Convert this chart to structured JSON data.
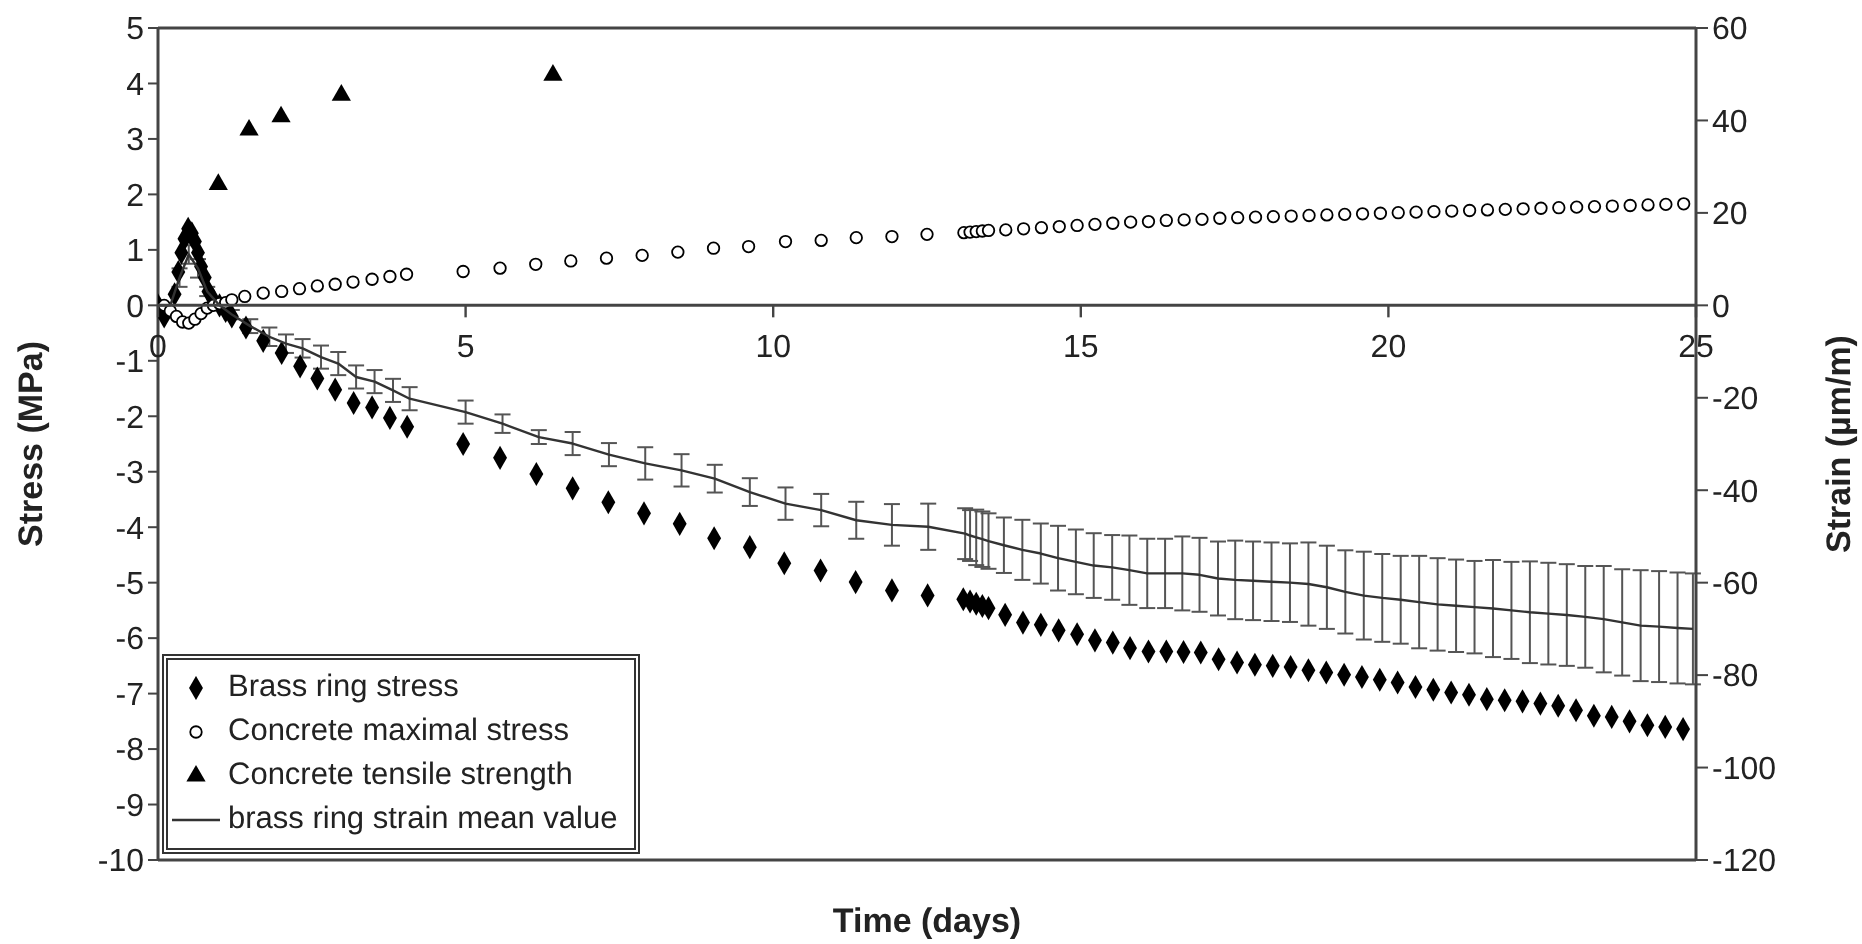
{
  "chart_data": {
    "type": "scatter",
    "xlabel": "Time (days)",
    "ylabel": "Stress (MPa)",
    "y2label": "Strain (µm/m)",
    "xlim": [
      0,
      25
    ],
    "xticks": [
      0,
      5,
      10,
      15,
      20,
      25
    ],
    "ylim": [
      -10,
      5
    ],
    "yticks": [
      -10,
      -9,
      -8,
      -7,
      -6,
      -5,
      -4,
      -3,
      -2,
      -1,
      0,
      1,
      2,
      3,
      4,
      5
    ],
    "y2lim": [
      -120,
      60
    ],
    "y2ticks": [
      -120,
      -100,
      -80,
      -60,
      -40,
      -20,
      0,
      20,
      40,
      60
    ],
    "legend": "bottom left",
    "series": [
      {
        "name": "Brass ring stress",
        "marker": "diamond",
        "color": "#000000",
        "x": [
          0,
          0.1,
          0.27,
          0.33,
          0.38,
          0.43,
          0.49,
          0.55,
          0.6,
          0.65,
          0.7,
          0.76,
          0.82,
          0.9,
          1.0,
          1.1,
          1.2,
          1.43,
          1.71,
          2.01,
          2.31,
          2.59,
          2.88,
          3.18,
          3.48,
          3.77,
          4.05,
          4.96,
          5.56,
          6.15,
          6.74,
          7.32,
          7.9,
          8.48,
          9.04,
          9.62,
          10.18,
          10.77,
          11.34,
          11.93,
          12.51,
          13.09,
          13.2,
          13.3,
          13.4,
          13.5,
          13.77,
          14.06,
          14.35,
          14.64,
          14.94,
          15.23,
          15.52,
          15.8,
          16.1,
          16.39,
          16.67,
          16.95,
          17.24,
          17.54,
          17.83,
          18.12,
          18.41,
          18.7,
          18.99,
          19.28,
          19.57,
          19.86,
          20.15,
          20.44,
          20.73,
          21.02,
          21.31,
          21.6,
          21.89,
          22.18,
          22.47,
          22.76,
          23.05,
          23.34,
          23.63,
          23.92,
          24.21,
          24.5,
          24.79
        ],
        "values": [
          0,
          -0.2,
          0.2,
          0.6,
          0.95,
          1.2,
          1.38,
          1.3,
          1.15,
          0.95,
          0.7,
          0.5,
          0.25,
          0.1,
          0,
          -0.1,
          -0.2,
          -0.4,
          -0.64,
          -0.86,
          -1.1,
          -1.32,
          -1.52,
          -1.76,
          -1.84,
          -2.03,
          -2.19,
          -2.5,
          -2.75,
          -3.04,
          -3.3,
          -3.55,
          -3.75,
          -3.94,
          -4.2,
          -4.36,
          -4.65,
          -4.78,
          -4.99,
          -5.14,
          -5.23,
          -5.3,
          -5.34,
          -5.38,
          -5.42,
          -5.46,
          -5.58,
          -5.72,
          -5.76,
          -5.86,
          -5.93,
          -6.04,
          -6.08,
          -6.18,
          -6.24,
          -6.24,
          -6.25,
          -6.26,
          -6.38,
          -6.44,
          -6.48,
          -6.5,
          -6.52,
          -6.58,
          -6.62,
          -6.66,
          -6.7,
          -6.75,
          -6.8,
          -6.88,
          -6.93,
          -6.98,
          -7.02,
          -7.1,
          -7.12,
          -7.14,
          -7.18,
          -7.22,
          -7.3,
          -7.4,
          -7.42,
          -7.5,
          -7.57,
          -7.6,
          -7.64
        ]
      },
      {
        "name": "Concrete maximal stress",
        "marker": "circle",
        "color": "#000000",
        "x": [
          0.1,
          0.2,
          0.3,
          0.4,
          0.5,
          0.6,
          0.7,
          0.8,
          0.9,
          1.0,
          1.1,
          1.2,
          1.41,
          1.71,
          2.01,
          2.3,
          2.59,
          2.88,
          3.17,
          3.48,
          3.77,
          4.04,
          4.96,
          5.56,
          6.14,
          6.71,
          7.29,
          7.87,
          8.45,
          9.03,
          9.6,
          10.2,
          10.78,
          11.35,
          11.93,
          12.5,
          13.1,
          13.2,
          13.3,
          13.4,
          13.5,
          13.78,
          14.07,
          14.36,
          14.65,
          14.94,
          15.23,
          15.52,
          15.81,
          16.1,
          16.39,
          16.68,
          16.97,
          17.26,
          17.55,
          17.84,
          18.13,
          18.42,
          18.71,
          19.0,
          19.29,
          19.58,
          19.87,
          20.16,
          20.45,
          20.74,
          21.03,
          21.32,
          21.61,
          21.9,
          22.19,
          22.48,
          22.77,
          23.06,
          23.35,
          23.64,
          23.93,
          24.22,
          24.51,
          24.8
        ],
        "values": [
          0,
          -0.1,
          -0.2,
          -0.3,
          -0.32,
          -0.25,
          -0.15,
          -0.05,
          0,
          0.03,
          0.05,
          0.1,
          0.16,
          0.22,
          0.25,
          0.3,
          0.35,
          0.38,
          0.42,
          0.47,
          0.52,
          0.56,
          0.61,
          0.67,
          0.74,
          0.8,
          0.85,
          0.9,
          0.96,
          1.03,
          1.06,
          1.15,
          1.17,
          1.22,
          1.24,
          1.28,
          1.31,
          1.32,
          1.33,
          1.34,
          1.35,
          1.36,
          1.38,
          1.4,
          1.42,
          1.44,
          1.46,
          1.48,
          1.5,
          1.51,
          1.53,
          1.54,
          1.55,
          1.57,
          1.58,
          1.59,
          1.6,
          1.61,
          1.62,
          1.63,
          1.64,
          1.65,
          1.66,
          1.67,
          1.68,
          1.69,
          1.7,
          1.71,
          1.72,
          1.73,
          1.74,
          1.75,
          1.76,
          1.77,
          1.78,
          1.79,
          1.8,
          1.81,
          1.82,
          1.83
        ]
      },
      {
        "name": "Concrete tensile strength",
        "marker": "triangle",
        "color": "#000000",
        "x": [
          0.98,
          1.48,
          2.0,
          2.98,
          6.42
        ],
        "values": [
          2.18,
          3.16,
          3.4,
          3.79,
          4.15
        ]
      },
      {
        "name": "brass ring strain mean value",
        "type": "line",
        "marker": "none",
        "axis": "y2",
        "color": "#333333",
        "x": [
          0,
          0.2,
          0.35,
          0.5,
          0.65,
          0.8,
          1.0,
          1.2,
          1.5,
          1.81,
          2.08,
          2.35,
          2.65,
          2.93,
          3.22,
          3.52,
          3.82,
          4.09,
          5.0,
          5.6,
          6.19,
          6.74,
          7.33,
          7.92,
          8.51,
          9.05,
          9.62,
          10.2,
          10.78,
          11.35,
          11.93,
          12.52,
          13.12,
          13.2,
          13.3,
          13.4,
          13.5,
          13.75,
          14.05,
          14.35,
          14.63,
          14.92,
          15.21,
          15.51,
          15.79,
          16.08,
          16.37,
          16.65,
          16.93,
          17.23,
          17.51,
          17.8,
          18.1,
          18.4,
          18.7,
          19.0,
          19.3,
          19.6,
          19.9,
          20.2,
          20.5,
          20.8,
          21.1,
          21.4,
          21.7,
          22.0,
          22.3,
          22.6,
          22.9,
          23.2,
          23.5,
          23.8,
          24.1,
          24.4,
          24.7,
          24.95
        ],
        "values": [
          0,
          0,
          6,
          11,
          8,
          3,
          0,
          -2,
          -4.5,
          -6.8,
          -8.3,
          -9.3,
          -11.2,
          -12.6,
          -15.5,
          -16.5,
          -18.4,
          -20.2,
          -23.1,
          -25.6,
          -28.5,
          -29.9,
          -32.3,
          -34.2,
          -35.7,
          -37.5,
          -40.4,
          -42.9,
          -44.3,
          -46.5,
          -47.5,
          -47.9,
          -49.4,
          -49.8,
          -50.2,
          -50.6,
          -51,
          -51.9,
          -52.9,
          -53.7,
          -54.7,
          -55.5,
          -56.3,
          -56.7,
          -57.3,
          -58,
          -58,
          -58,
          -58.3,
          -59.1,
          -59.4,
          -59.6,
          -59.8,
          -60,
          -60.3,
          -61,
          -62,
          -62.8,
          -63.3,
          -63.7,
          -64.2,
          -64.7,
          -65,
          -65.3,
          -65.6,
          -66,
          -66.4,
          -66.7,
          -67,
          -67.4,
          -67.9,
          -68.6,
          -69.3,
          -69.5,
          -69.8,
          -70
        ],
        "errors": [
          null,
          null,
          2,
          2,
          2,
          1,
          1,
          1,
          1.5,
          2,
          2,
          2,
          2.5,
          2.5,
          2.5,
          2.5,
          2.5,
          2.5,
          2.5,
          2,
          1.5,
          2.5,
          2.5,
          3.5,
          3.5,
          3,
          3,
          3.5,
          3.5,
          4,
          4.5,
          5,
          5.5,
          5.5,
          6,
          6,
          6,
          6,
          6.5,
          6.5,
          7,
          7,
          7,
          7,
          7.5,
          7.5,
          7.5,
          8,
          8,
          8,
          8.5,
          8.5,
          8.5,
          8.5,
          9,
          9,
          9,
          9.5,
          9.5,
          9.5,
          10,
          10,
          10,
          10,
          10.5,
          10.5,
          11,
          11,
          11,
          11,
          11.5,
          11.5,
          12,
          12,
          12,
          12
        ]
      }
    ]
  }
}
